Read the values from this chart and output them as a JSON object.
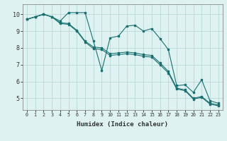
{
  "xlabel": "Humidex (Indice chaleur)",
  "xlim": [
    -0.5,
    23.5
  ],
  "ylim": [
    4.3,
    10.6
  ],
  "yticks": [
    5,
    6,
    7,
    8,
    9,
    10
  ],
  "xticks": [
    0,
    1,
    2,
    3,
    4,
    5,
    6,
    7,
    8,
    9,
    10,
    11,
    12,
    13,
    14,
    15,
    16,
    17,
    18,
    19,
    20,
    21,
    22,
    23
  ],
  "bg_color": "#dff2f2",
  "line_color": "#1a7070",
  "grid_color": "#b8d8d8",
  "line1": [
    9.7,
    9.85,
    10.0,
    9.85,
    9.6,
    10.1,
    10.1,
    10.1,
    8.4,
    6.65,
    8.6,
    8.7,
    9.3,
    9.35,
    9.0,
    9.15,
    8.55,
    7.9,
    5.75,
    5.8,
    5.35,
    6.1,
    4.85,
    4.7
  ],
  "line2": [
    9.7,
    9.85,
    10.0,
    9.85,
    9.5,
    9.45,
    9.05,
    8.4,
    8.05,
    8.0,
    7.65,
    7.7,
    7.75,
    7.7,
    7.6,
    7.55,
    7.1,
    6.6,
    5.6,
    5.5,
    5.0,
    5.1,
    4.7,
    4.6
  ],
  "line3": [
    9.7,
    9.85,
    10.0,
    9.85,
    9.45,
    9.4,
    9.0,
    8.35,
    7.95,
    7.9,
    7.55,
    7.6,
    7.65,
    7.6,
    7.5,
    7.45,
    7.0,
    6.5,
    5.55,
    5.45,
    4.95,
    5.05,
    4.65,
    4.55
  ]
}
